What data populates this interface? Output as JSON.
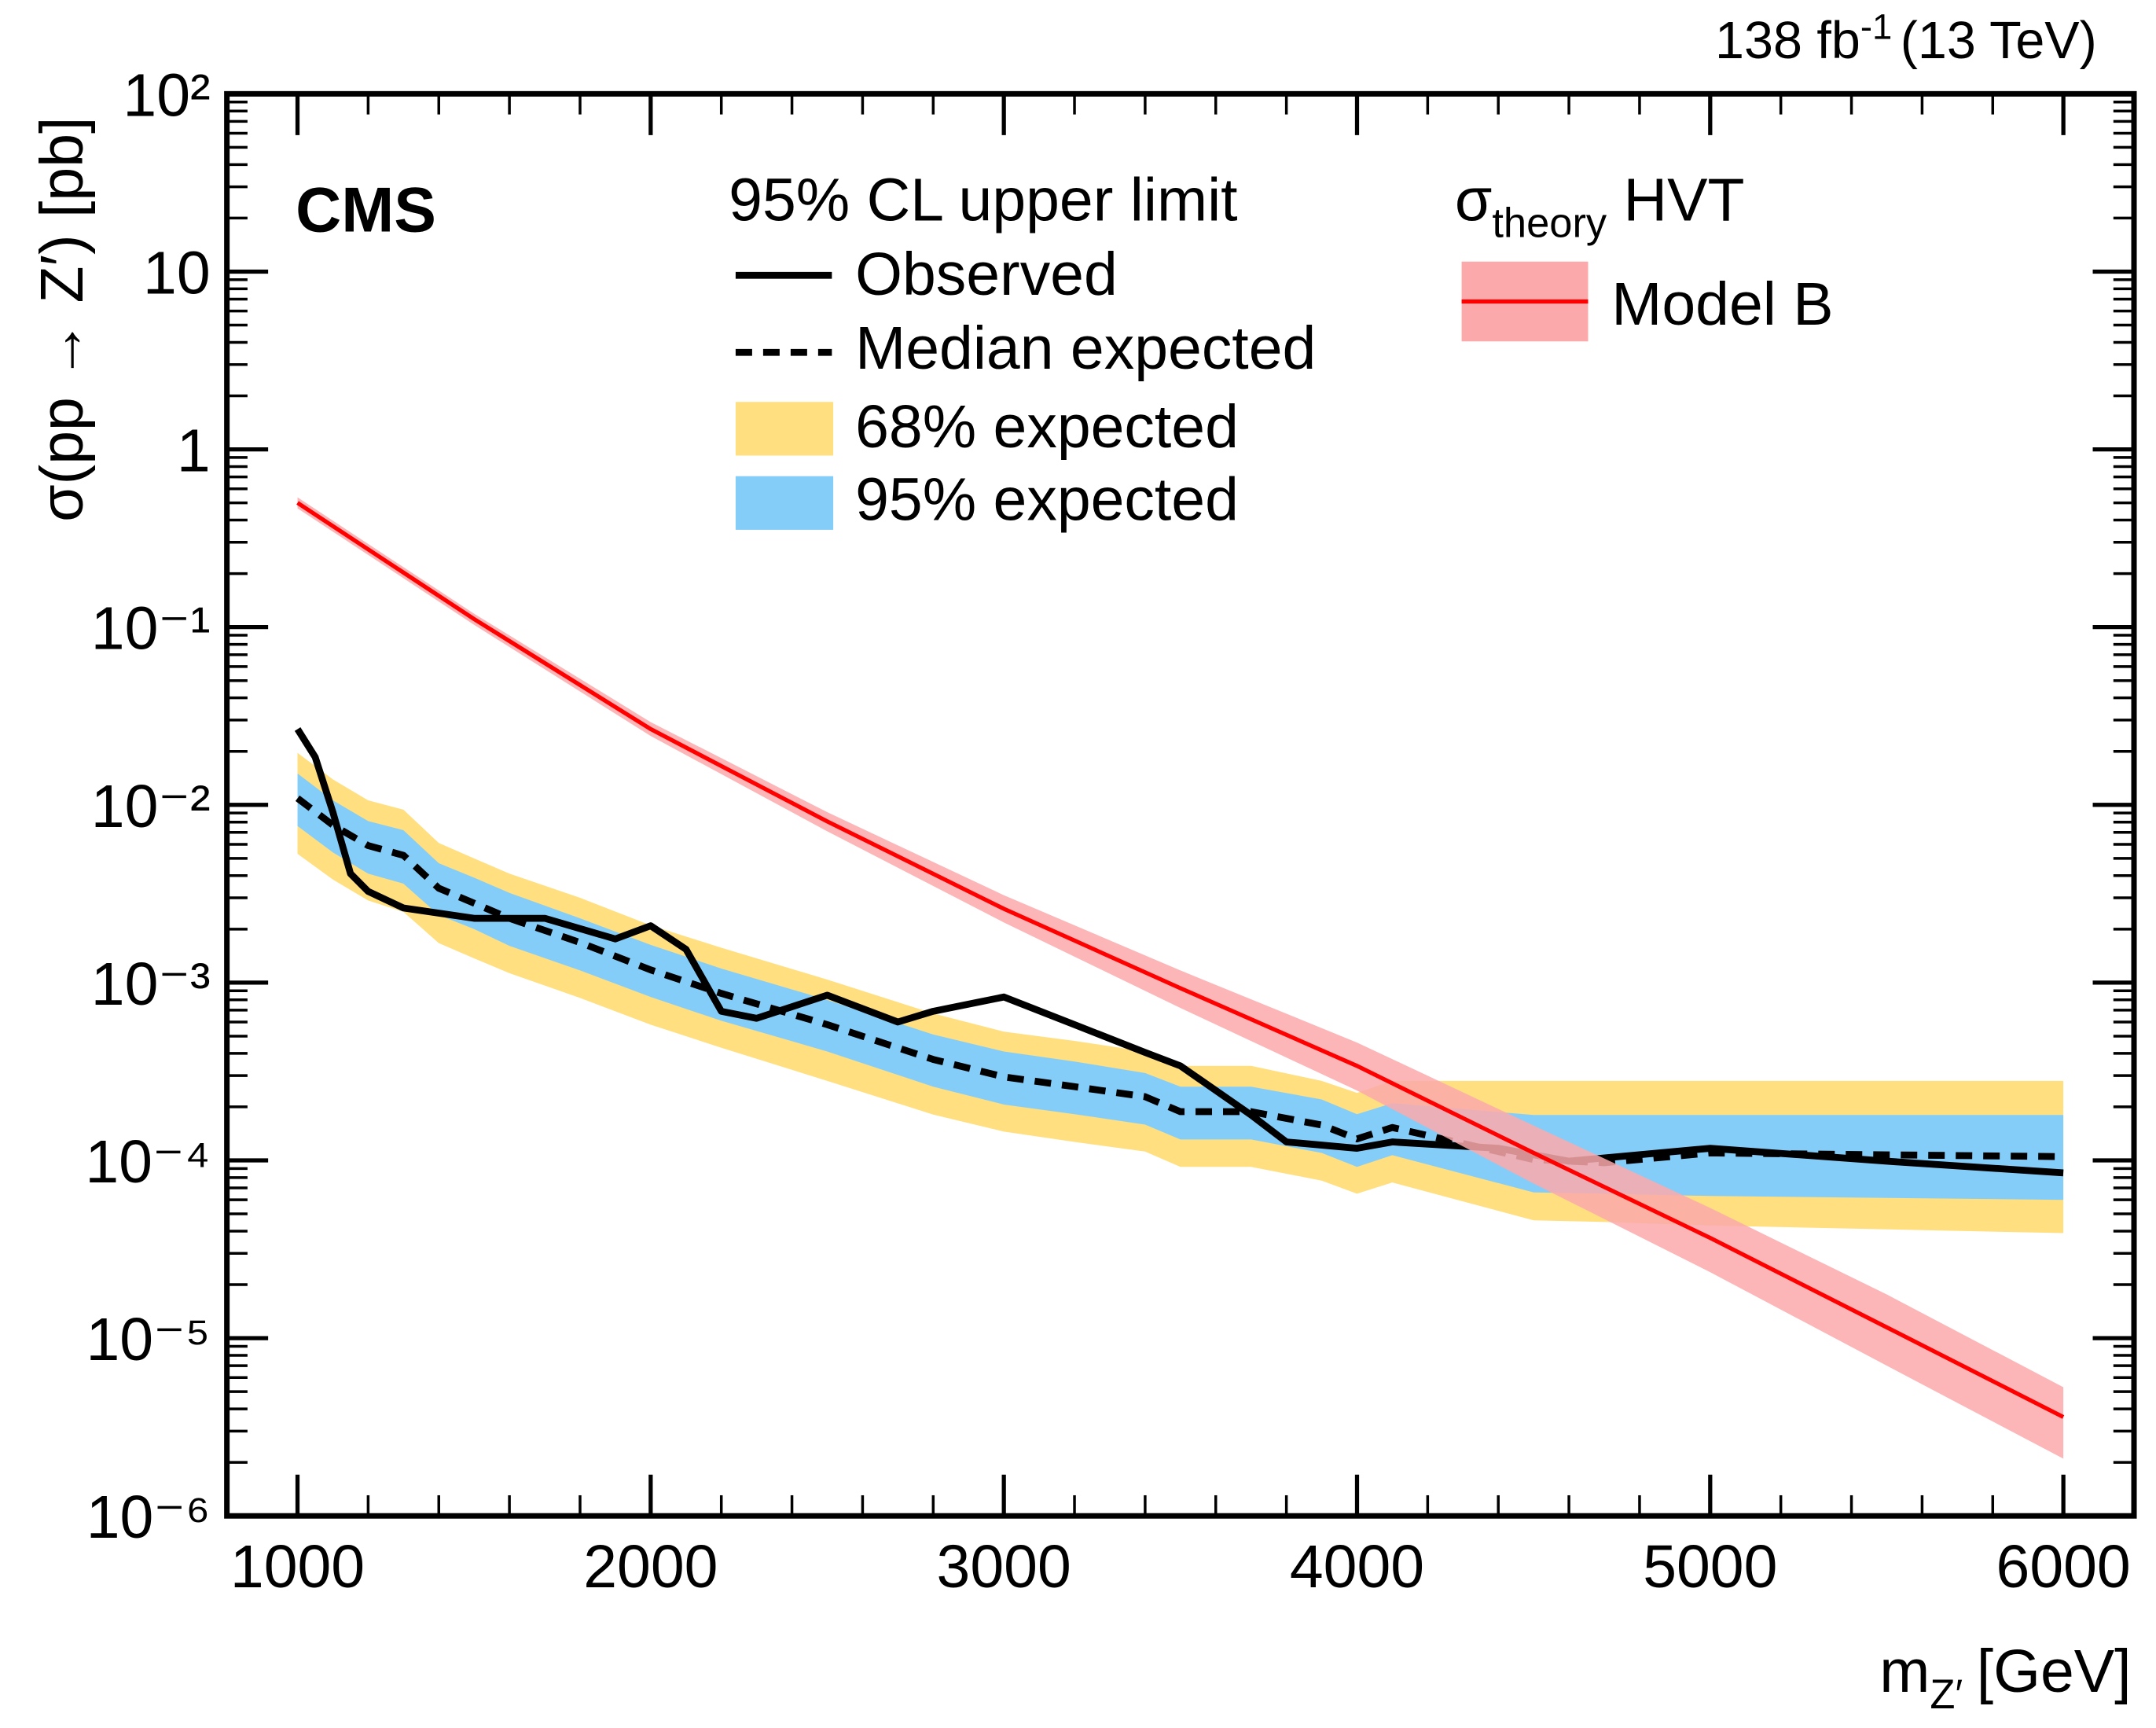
{
  "chart_data": {
    "type": "line",
    "experiment": "CMS",
    "lumi": {
      "text": "138 fb",
      "sup": "-1",
      "energy": "(13 TeV)"
    },
    "y_label": "σ(pp → Z′) [pb]",
    "x_label": {
      "main": "m",
      "sub": "Z′",
      "unit": "[GeV]"
    },
    "legend_title": "95% CL upper limit",
    "theory_title": {
      "main": "σ",
      "sub": "theory",
      "rest": " HVT"
    },
    "xlim": [
      800,
      6200
    ],
    "xticks": [
      1000,
      2000,
      3000,
      4000,
      5000,
      6000
    ],
    "ylim": [
      1e-06,
      100
    ],
    "log_y": true,
    "yticks": [
      {
        "value": 1e-06,
        "label": "10⁻⁶"
      },
      {
        "value": 1e-05,
        "label": "10⁻⁵"
      },
      {
        "value": 0.0001,
        "label": "10⁻⁴"
      },
      {
        "value": 0.001,
        "label": "10⁻³"
      },
      {
        "value": 0.01,
        "label": "10⁻²"
      },
      {
        "value": 0.1,
        "label": "10⁻¹"
      },
      1,
      10,
      {
        "value": 100,
        "label": "10²"
      }
    ],
    "series": [
      {
        "name": "68% expected",
        "kind": "band",
        "color": "#ffdf7f",
        "x": [
          1000,
          1100,
          1200,
          1300,
          1400,
          1500,
          1600,
          1800,
          2000,
          2200,
          2500,
          2800,
          3000,
          3200,
          3400,
          3500,
          3700,
          3900,
          4000,
          4100,
          4500,
          4700,
          5000,
          6000
        ],
        "upper": [
          0.0196,
          0.0139,
          0.0106,
          0.0094,
          0.0061,
          0.005,
          0.0041,
          0.003,
          0.0021,
          0.00157,
          0.00104,
          0.00067,
          0.00053,
          0.00047,
          0.00041,
          0.00034,
          0.00034,
          0.00028,
          0.00024,
          0.00028,
          0.00028,
          0.00028,
          0.00028,
          0.00028
        ],
        "lower": [
          0.0053,
          0.0038,
          0.0029,
          0.0025,
          0.00167,
          0.00137,
          0.00113,
          0.00082,
          0.00058,
          0.00043,
          0.00028,
          0.000181,
          0.000145,
          0.000127,
          0.000112,
          9.2e-05,
          9.2e-05,
          7.7e-05,
          6.5e-05,
          7.5e-05,
          4.6e-05,
          4.5e-05,
          4.3e-05,
          3.9e-05
        ]
      },
      {
        "name": "95% expected",
        "kind": "band",
        "color": "#85cdf9",
        "x": [
          1000,
          1100,
          1200,
          1300,
          1400,
          1500,
          1600,
          1800,
          2000,
          2200,
          2500,
          2800,
          3000,
          3200,
          3400,
          3500,
          3700,
          3900,
          4000,
          4100,
          4500,
          4700,
          5000,
          6000
        ],
        "upper": [
          0.015,
          0.0106,
          0.0081,
          0.0072,
          0.0047,
          0.0039,
          0.0032,
          0.0023,
          0.00163,
          0.0012,
          0.0008,
          0.00051,
          0.00041,
          0.00036,
          0.00031,
          0.00026,
          0.00026,
          0.00022,
          0.000182,
          0.00021,
          0.00018,
          0.00018,
          0.00018,
          0.00018
        ],
        "lower": [
          0.0076,
          0.0054,
          0.0041,
          0.0036,
          0.0024,
          0.002,
          0.00161,
          0.00117,
          0.00083,
          0.00061,
          0.00041,
          0.00026,
          0.000206,
          0.000182,
          0.000159,
          0.000131,
          0.000131,
          0.00011,
          9.2e-05,
          0.000107,
          6.6e-05,
          6.5e-05,
          6.3e-05,
          6e-05
        ]
      },
      {
        "name": "Median expected",
        "kind": "line",
        "dashed": true,
        "color": "#000000",
        "x": [
          1000,
          1100,
          1200,
          1300,
          1400,
          1500,
          1600,
          1800,
          2000,
          2200,
          2500,
          2800,
          3000,
          3200,
          3400,
          3500,
          3700,
          3900,
          4000,
          4100,
          4500,
          4700,
          5000,
          6000
        ],
        "values": [
          0.0109,
          0.0077,
          0.0059,
          0.0052,
          0.0034,
          0.0028,
          0.0023,
          0.00168,
          0.00118,
          0.00087,
          0.00058,
          0.00037,
          0.000295,
          0.00026,
          0.000228,
          0.000188,
          0.000188,
          0.000158,
          0.000132,
          0.000153,
          0.000101,
          9.7e-05,
          0.00011,
          0.000105
        ]
      },
      {
        "name": "Observed",
        "kind": "line",
        "dashed": false,
        "color": "#000000",
        "x": [
          1000,
          1050,
          1100,
          1150,
          1200,
          1300,
          1500,
          1700,
          1900,
          2000,
          2100,
          2200,
          2300,
          2500,
          2700,
          2800,
          3000,
          3200,
          3400,
          3500,
          3700,
          3800,
          4000,
          4100,
          4400,
          4600,
          5000,
          5500,
          6000
        ],
        "values": [
          0.0267,
          0.0186,
          0.0091,
          0.0041,
          0.00326,
          0.00263,
          0.0023,
          0.0023,
          0.00176,
          0.00209,
          0.00154,
          0.00069,
          0.00063,
          0.00085,
          0.0006,
          0.00069,
          0.00083,
          0.00058,
          0.000405,
          0.00034,
          0.00018,
          0.000127,
          0.000117,
          0.000127,
          0.000117,
          9.9e-05,
          0.000117,
          9.9e-05,
          8.5e-05
        ]
      },
      {
        "name": "Model B",
        "kind": "theory",
        "color": "#ff0000",
        "band_color": "#fca9ab",
        "x": [
          1000,
          1500,
          2000,
          2500,
          3000,
          3500,
          4000,
          4500,
          5000,
          5500,
          6000
        ],
        "values": [
          0.5,
          0.111,
          0.0267,
          0.00807,
          0.0026,
          0.00093,
          0.00034,
          0.00011,
          3.66e-05,
          1.15e-05,
          3.6e-06
        ],
        "upper": [
          0.537,
          0.119,
          0.0292,
          0.0091,
          0.0031,
          0.00117,
          0.00046,
          0.000157,
          5.4e-05,
          1.76e-05,
          5.3e-06
        ],
        "lower": [
          0.466,
          0.103,
          0.0244,
          0.0071,
          0.00218,
          0.00072,
          0.000247,
          7.4e-05,
          2.35e-05,
          7e-06,
          2.1e-06
        ]
      }
    ]
  }
}
